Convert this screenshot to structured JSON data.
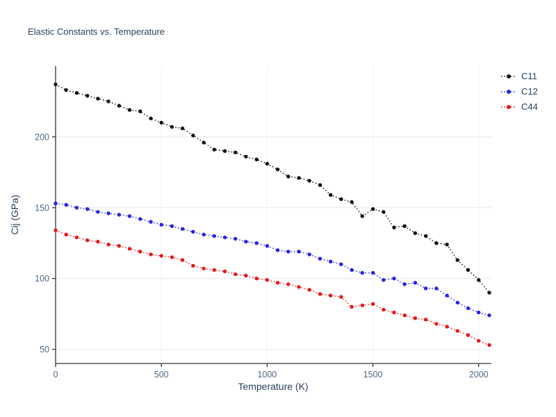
{
  "chart_data": {
    "type": "line",
    "title": "Elastic Constants vs. Temperature",
    "xlabel": "Temperature (K)",
    "ylabel": "Cij (GPa)",
    "xlim": [
      0,
      2060
    ],
    "ylim": [
      40,
      250
    ],
    "xticks": [
      0,
      500,
      1000,
      1500,
      2000
    ],
    "yticks": [
      50,
      100,
      150,
      200
    ],
    "grid": true,
    "legend_position": "outside-top-right",
    "line_style": "dotted",
    "marker": "circle",
    "x": [
      0,
      50,
      100,
      150,
      200,
      250,
      300,
      350,
      400,
      450,
      500,
      550,
      600,
      650,
      700,
      750,
      800,
      850,
      900,
      950,
      1000,
      1050,
      1100,
      1150,
      1200,
      1250,
      1300,
      1350,
      1400,
      1450,
      1500,
      1550,
      1600,
      1650,
      1700,
      1750,
      1800,
      1850,
      1900,
      1950,
      2000,
      2050
    ],
    "series": [
      {
        "name": "C11",
        "color": "#111111",
        "values": [
          237,
          233,
          231,
          229,
          227,
          225,
          222,
          219,
          218,
          213,
          210,
          207,
          206,
          201,
          196,
          191,
          190,
          189,
          186,
          184,
          181,
          177,
          172,
          171,
          169,
          166,
          159,
          156,
          154,
          144,
          149,
          147,
          136,
          137,
          132,
          130,
          125,
          124,
          113,
          106,
          99,
          90
        ]
      },
      {
        "name": "C12",
        "color": "#2424e8",
        "values": [
          153,
          152,
          150,
          149,
          147,
          146,
          145,
          144,
          142,
          140,
          138,
          137,
          135,
          133,
          131,
          130,
          129,
          128,
          126,
          125,
          123,
          120,
          119,
          119,
          117,
          114,
          112,
          110,
          106,
          104,
          104,
          99,
          100,
          96,
          97,
          93,
          93,
          88,
          83,
          79,
          76,
          74
        ]
      },
      {
        "name": "C44",
        "color": "#e81717",
        "values": [
          134,
          131,
          129,
          127,
          126,
          124,
          123,
          121,
          119,
          117,
          116,
          115,
          113,
          109,
          107,
          106,
          105,
          103,
          102,
          100,
          99,
          97,
          96,
          94,
          92,
          89,
          88,
          87,
          80,
          81,
          82,
          78,
          76,
          74,
          72,
          71,
          68,
          66,
          63,
          60,
          56,
          53
        ]
      }
    ],
    "colors": {
      "title": "#2a3f5f",
      "axis_line": "#333333",
      "tick_label": "#506784",
      "grid_h": "#e8e8e8",
      "grid_v": "#f2f2f2",
      "background": "#ffffff"
    }
  }
}
